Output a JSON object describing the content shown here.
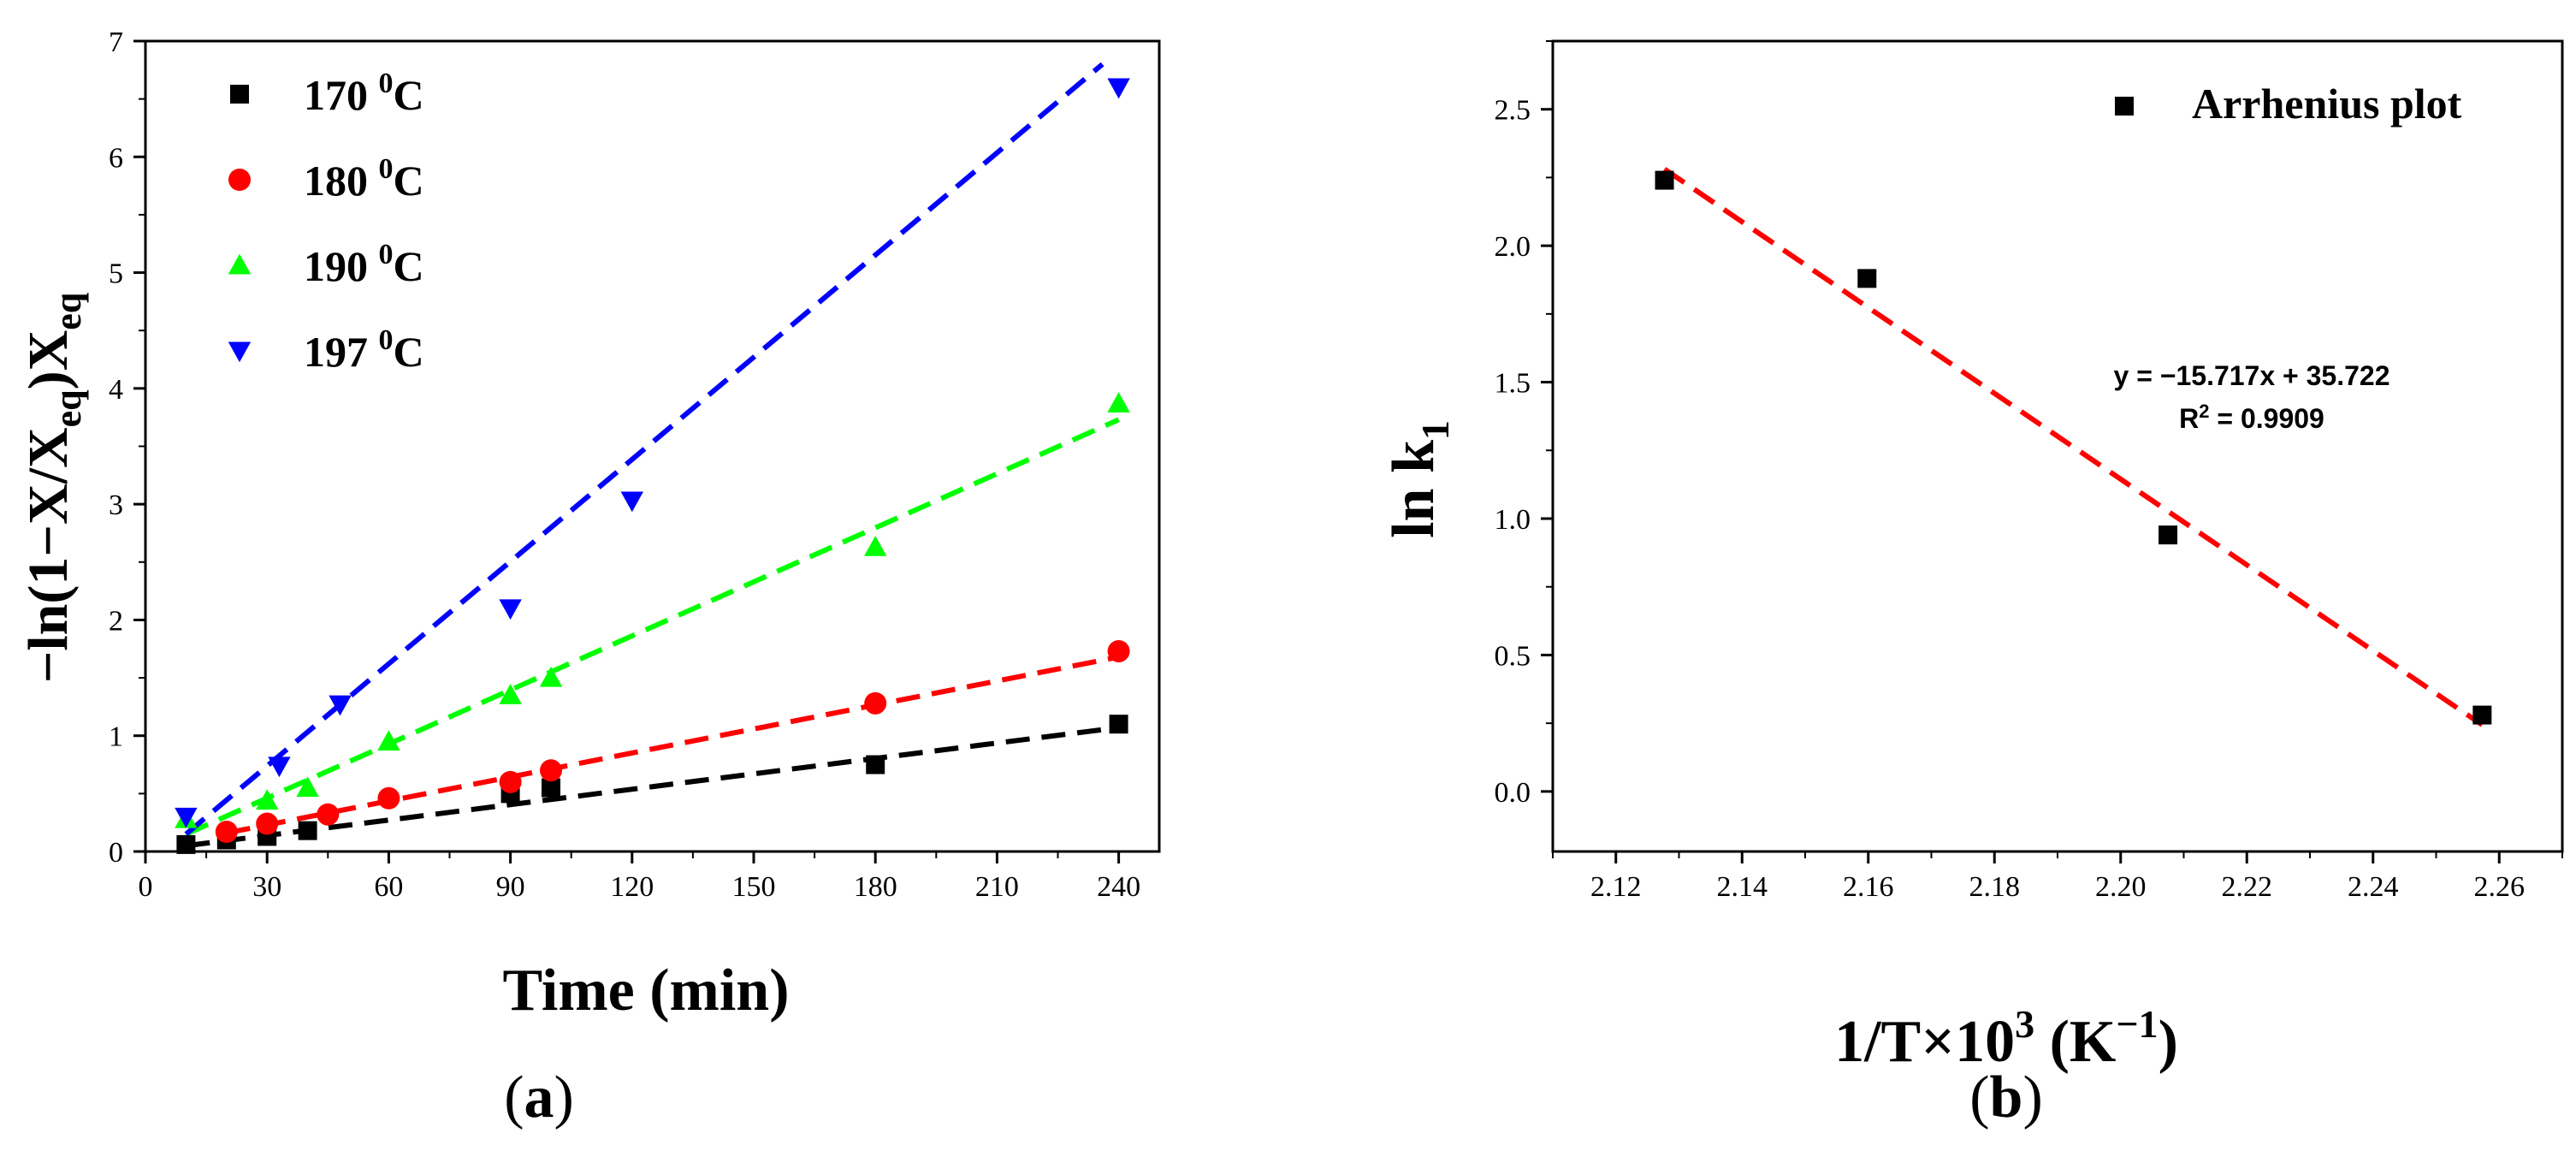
{
  "chart_data": [
    {
      "type": "scatter",
      "panel_label": "(a)",
      "panel_letter": "a",
      "xlabel": "Time (min)",
      "ylabel": {
        "prefix": "−ln(1−X/X",
        "sub1": "eq",
        "mid": ")X",
        "sub2": "eq"
      },
      "xlim": [
        0,
        250
      ],
      "ylim": [
        0,
        7
      ],
      "xticks": [
        0,
        30,
        60,
        90,
        120,
        150,
        180,
        210,
        240
      ],
      "yticks": [
        0,
        1,
        2,
        3,
        4,
        5,
        6,
        7
      ],
      "series": [
        {
          "name": "170 0C",
          "temp": "170",
          "sup": "0",
          "unit": "C",
          "marker": "square",
          "color": "#000000",
          "x": [
            10,
            20,
            30,
            40,
            90,
            100,
            180,
            240
          ],
          "y": [
            0.06,
            0.1,
            0.13,
            0.18,
            0.5,
            0.55,
            0.75,
            1.1
          ],
          "fit": [
            [
              10,
              0.05
            ],
            [
              240,
              1.07
            ]
          ]
        },
        {
          "name": "180 0C",
          "temp": "180",
          "sup": "0",
          "unit": "C",
          "marker": "circle",
          "color": "#ff0000",
          "x": [
            20,
            30,
            45,
            60,
            90,
            100,
            180,
            240
          ],
          "y": [
            0.17,
            0.24,
            0.32,
            0.46,
            0.6,
            0.7,
            1.28,
            1.73
          ],
          "fit": [
            [
              20,
              0.16
            ],
            [
              240,
              1.68
            ]
          ]
        },
        {
          "name": "190 0C",
          "temp": "190",
          "sup": "0",
          "unit": "C",
          "marker": "triangle-up",
          "color": "#00ff00",
          "x": [
            10,
            30,
            40,
            60,
            90,
            100,
            180,
            240
          ],
          "y": [
            0.28,
            0.44,
            0.55,
            0.95,
            1.35,
            1.5,
            2.63,
            3.87
          ],
          "fit": [
            [
              10,
              0.15
            ],
            [
              240,
              3.73
            ]
          ]
        },
        {
          "name": "197 0C",
          "temp": "197",
          "sup": "0",
          "unit": "C",
          "marker": "triangle-down",
          "color": "#0000ff",
          "x": [
            10,
            33,
            48,
            90,
            120,
            240
          ],
          "y": [
            0.3,
            0.74,
            1.27,
            2.1,
            3.03,
            6.6
          ],
          "fit": [
            [
              10,
              0.15
            ],
            [
              236,
              6.8
            ]
          ]
        }
      ]
    },
    {
      "type": "scatter",
      "panel_label": "(b)",
      "panel_letter": "b",
      "xlabel": {
        "main": "1/T×10",
        "sup1": "3",
        "mid": " (K",
        "sup2": "−1",
        "end": ")"
      },
      "ylabel": {
        "main": "ln k",
        "sub": "1"
      },
      "xlim": [
        2.11,
        2.27
      ],
      "ylim": [
        -0.22,
        2.75
      ],
      "xticks": [
        "2.12",
        "2.14",
        "2.16",
        "2.18",
        "2.20",
        "2.22",
        "2.24",
        "2.26"
      ],
      "yticks": [
        "0.0",
        "0.5",
        "1.0",
        "1.5",
        "2.0",
        "2.5"
      ],
      "legend": "Arrhenius plot",
      "series": [
        {
          "name": "Arrhenius plot",
          "marker": "square",
          "color": "#000000",
          "x": [
            2.1277,
            2.1598,
            2.2075,
            2.2573
          ],
          "y": [
            2.24,
            1.88,
            0.94,
            0.28
          ]
        }
      ],
      "fit": {
        "x": [
          2.1277,
          2.2573
        ],
        "color": "#ff0000",
        "slope": -15.717,
        "intercept": 35.722
      },
      "equation": {
        "line1": "y = −15.717x + 35.722",
        "r_prefix": "R",
        "r_sup": "2",
        "r_rest": " = 0.9909"
      }
    }
  ]
}
